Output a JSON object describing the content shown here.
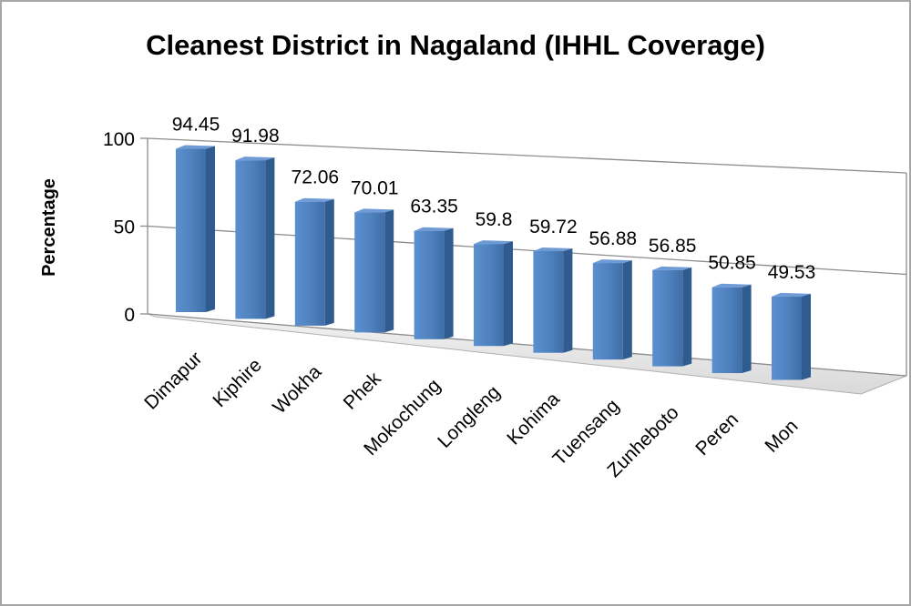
{
  "chart_data": {
    "type": "bar",
    "title": "Cleanest District in Nagaland (IHHL Coverage)",
    "xlabel": "",
    "ylabel": "Percentage",
    "ylim": [
      0,
      100
    ],
    "yticks": [
      0,
      50,
      100
    ],
    "grid": true,
    "legend": "none",
    "bar_color": "#4f81bd",
    "categories": [
      "Dimapur",
      "Kiphire",
      "Wokha",
      "Phek",
      "Mokochung",
      "Longleng",
      "Kohima",
      "Tuensang",
      "Zunheboto",
      "Peren",
      "Mon"
    ],
    "values": [
      94.45,
      91.98,
      72.06,
      70.01,
      63.35,
      59.8,
      59.72,
      56.88,
      56.85,
      50.85,
      49.53
    ]
  }
}
